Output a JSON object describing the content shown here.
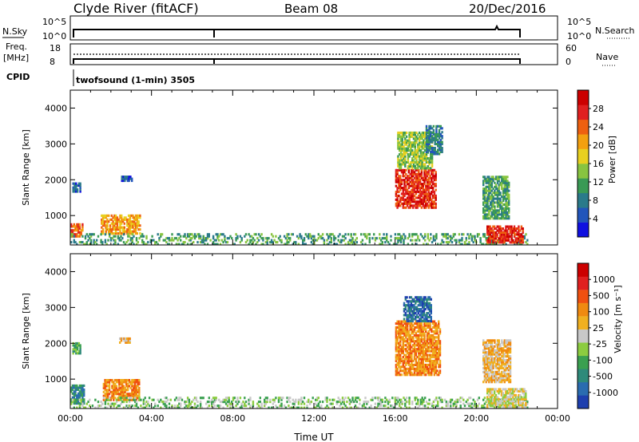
{
  "header": {
    "station": "Clyde River (fitACF)",
    "beam": "Beam 08",
    "date": "20/Dec/2016"
  },
  "top_panels": {
    "nsky_label": "N.Sky",
    "nsky_ticks": [
      "10^5",
      "10^0"
    ],
    "nsearch_label": "N.Search",
    "nsearch_ticks": [
      "10^5",
      "10^0"
    ],
    "freq_label_line1": "Freq.",
    "freq_label_line2": "[MHz]",
    "freq_ticks": [
      "18",
      "8"
    ],
    "nave_label": "Nave",
    "nave_ticks": [
      "60",
      "0"
    ],
    "cpid_label": "CPID",
    "cpid_text": "twofsound (1-min) 3505"
  },
  "chart_data": [
    {
      "type": "heatmap",
      "name": "power-panel",
      "xlabel": "",
      "ylabel": "Slant Range [km]",
      "xlim": [
        0,
        24
      ],
      "ylim": [
        180,
        4500
      ],
      "y_ticks": [
        1000,
        2000,
        3000,
        4000
      ],
      "x_ticks": [
        0,
        4,
        8,
        12,
        16,
        20,
        24
      ],
      "colorbar": {
        "label": "Power [dB]",
        "tick_labels": [
          "4",
          "8",
          "12",
          "16",
          "20",
          "24",
          "28"
        ],
        "colors": [
          "#1010e0",
          "#2255bb",
          "#2a7a8a",
          "#3a9a55",
          "#88c440",
          "#e8d020",
          "#f3a010",
          "#ee6010",
          "#e02020",
          "#cc0000"
        ]
      },
      "regions": [
        {
          "t0": 0.0,
          "t1": 0.6,
          "r0": 400,
          "r1": 750,
          "level": 7
        },
        {
          "t0": 0.1,
          "t1": 0.5,
          "r0": 1650,
          "r1": 1900,
          "level": 1
        },
        {
          "t0": 1.5,
          "t1": 3.4,
          "r0": 480,
          "r1": 980,
          "level": 6
        },
        {
          "t0": 2.5,
          "t1": 3.0,
          "r0": 1950,
          "r1": 2100,
          "level": 1
        },
        {
          "t0": 0.0,
          "t1": 22.5,
          "r0": 180,
          "r1": 480,
          "level": 3
        },
        {
          "t0": 16.0,
          "t1": 18.0,
          "r0": 1200,
          "r1": 2300,
          "level": 8
        },
        {
          "t0": 16.1,
          "t1": 17.8,
          "r0": 2300,
          "r1": 3300,
          "level": 4
        },
        {
          "t0": 17.5,
          "t1": 18.3,
          "r0": 2700,
          "r1": 3500,
          "level": 2
        },
        {
          "t0": 20.3,
          "t1": 21.6,
          "r0": 900,
          "r1": 2100,
          "level": 3
        },
        {
          "t0": 20.5,
          "t1": 22.3,
          "r0": 230,
          "r1": 700,
          "level": 8
        }
      ]
    },
    {
      "type": "heatmap",
      "name": "velocity-panel",
      "xlabel": "Time UT",
      "ylabel": "Slant Range [km]",
      "xlim": [
        0,
        24
      ],
      "ylim": [
        180,
        4500
      ],
      "y_ticks": [
        1000,
        2000,
        3000,
        4000
      ],
      "x_ticks": [
        0,
        4,
        8,
        12,
        16,
        20,
        24
      ],
      "x_tick_labels": [
        "00:00",
        "04:00",
        "08:00",
        "12:00",
        "16:00",
        "20:00",
        "00:00"
      ],
      "colorbar": {
        "label": "Velocity [m s⁻¹]",
        "tick_labels": [
          "1000",
          "500",
          "100",
          "25",
          "-25",
          "-100",
          "-500",
          "-1000"
        ],
        "colors": [
          "#1e3fae",
          "#2a6cb0",
          "#2e8a7a",
          "#3aa050",
          "#8ccc40",
          "#c8c8c8",
          "#f0b020",
          "#f08a10",
          "#f05010",
          "#e02020",
          "#cc0000"
        ]
      },
      "regions": [
        {
          "t0": 0.0,
          "t1": 0.7,
          "r0": 300,
          "r1": 800,
          "level": 2
        },
        {
          "t0": 0.1,
          "t1": 0.5,
          "r0": 1700,
          "r1": 2000,
          "level": 3
        },
        {
          "t0": 1.6,
          "t1": 3.4,
          "r0": 400,
          "r1": 980,
          "level": 7
        },
        {
          "t0": 2.4,
          "t1": 2.9,
          "r0": 2000,
          "r1": 2150,
          "level": 6
        },
        {
          "t0": 0.0,
          "t1": 22.5,
          "r0": 180,
          "r1": 480,
          "level": 4
        },
        {
          "t0": 16.0,
          "t1": 18.2,
          "r0": 1100,
          "r1": 2600,
          "level": 7
        },
        {
          "t0": 16.4,
          "t1": 17.8,
          "r0": 2600,
          "r1": 3300,
          "level": 1
        },
        {
          "t0": 20.3,
          "t1": 21.7,
          "r0": 900,
          "r1": 2100,
          "level": 6
        },
        {
          "t0": 20.5,
          "t1": 22.4,
          "r0": 200,
          "r1": 700,
          "level": 5
        }
      ]
    }
  ]
}
